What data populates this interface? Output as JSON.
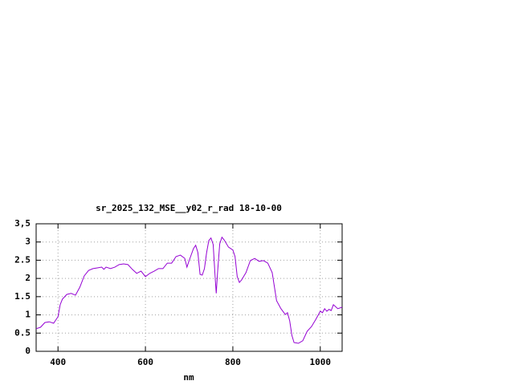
{
  "chart_data": {
    "type": "line",
    "title": "sr_2025_132_MSE__y02_r_rad 18-10-00",
    "x_label": "nm",
    "xlim": [
      350,
      1050
    ],
    "xticks": [
      400,
      600,
      800,
      1000
    ],
    "ylim": [
      0,
      3.5
    ],
    "yticks": [
      0,
      0.5,
      1,
      1.5,
      2,
      2.5,
      3,
      {
        "value": 3.5,
        "label": "3,5"
      }
    ],
    "grid": true,
    "x": [
      350,
      360,
      370,
      380,
      390,
      400,
      405,
      410,
      420,
      430,
      440,
      450,
      460,
      470,
      480,
      490,
      500,
      505,
      510,
      520,
      530,
      540,
      550,
      560,
      570,
      580,
      590,
      600,
      610,
      620,
      630,
      640,
      650,
      660,
      670,
      680,
      690,
      695,
      700,
      710,
      715,
      720,
      725,
      730,
      735,
      740,
      745,
      750,
      755,
      760,
      762,
      765,
      770,
      775,
      780,
      790,
      800,
      805,
      810,
      815,
      820,
      830,
      840,
      850,
      860,
      870,
      880,
      890,
      900,
      910,
      920,
      925,
      930,
      935,
      940,
      950,
      960,
      970,
      980,
      990,
      1000,
      1005,
      1010,
      1015,
      1020,
      1025,
      1030,
      1040,
      1050
    ],
    "series": [
      {
        "color": "#9400d3",
        "values": [
          0.62,
          0.66,
          0.79,
          0.81,
          0.77,
          0.95,
          1.28,
          1.43,
          1.56,
          1.59,
          1.54,
          1.76,
          2.07,
          2.22,
          2.27,
          2.29,
          2.31,
          2.25,
          2.31,
          2.27,
          2.31,
          2.38,
          2.4,
          2.38,
          2.25,
          2.14,
          2.2,
          2.05,
          2.14,
          2.2,
          2.27,
          2.27,
          2.42,
          2.42,
          2.6,
          2.64,
          2.55,
          2.31,
          2.49,
          2.82,
          2.91,
          2.71,
          2.11,
          2.09,
          2.27,
          2.71,
          3.04,
          3.11,
          2.93,
          1.94,
          1.59,
          2.16,
          2.95,
          3.13,
          3.06,
          2.86,
          2.78,
          2.6,
          2.05,
          1.89,
          1.96,
          2.16,
          2.49,
          2.55,
          2.47,
          2.49,
          2.42,
          2.16,
          1.39,
          1.17,
          1.01,
          1.06,
          0.84,
          0.44,
          0.24,
          0.22,
          0.29,
          0.55,
          0.68,
          0.88,
          1.1,
          1.06,
          1.17,
          1.1,
          1.15,
          1.12,
          1.28,
          1.17,
          1.21
        ]
      }
    ]
  }
}
